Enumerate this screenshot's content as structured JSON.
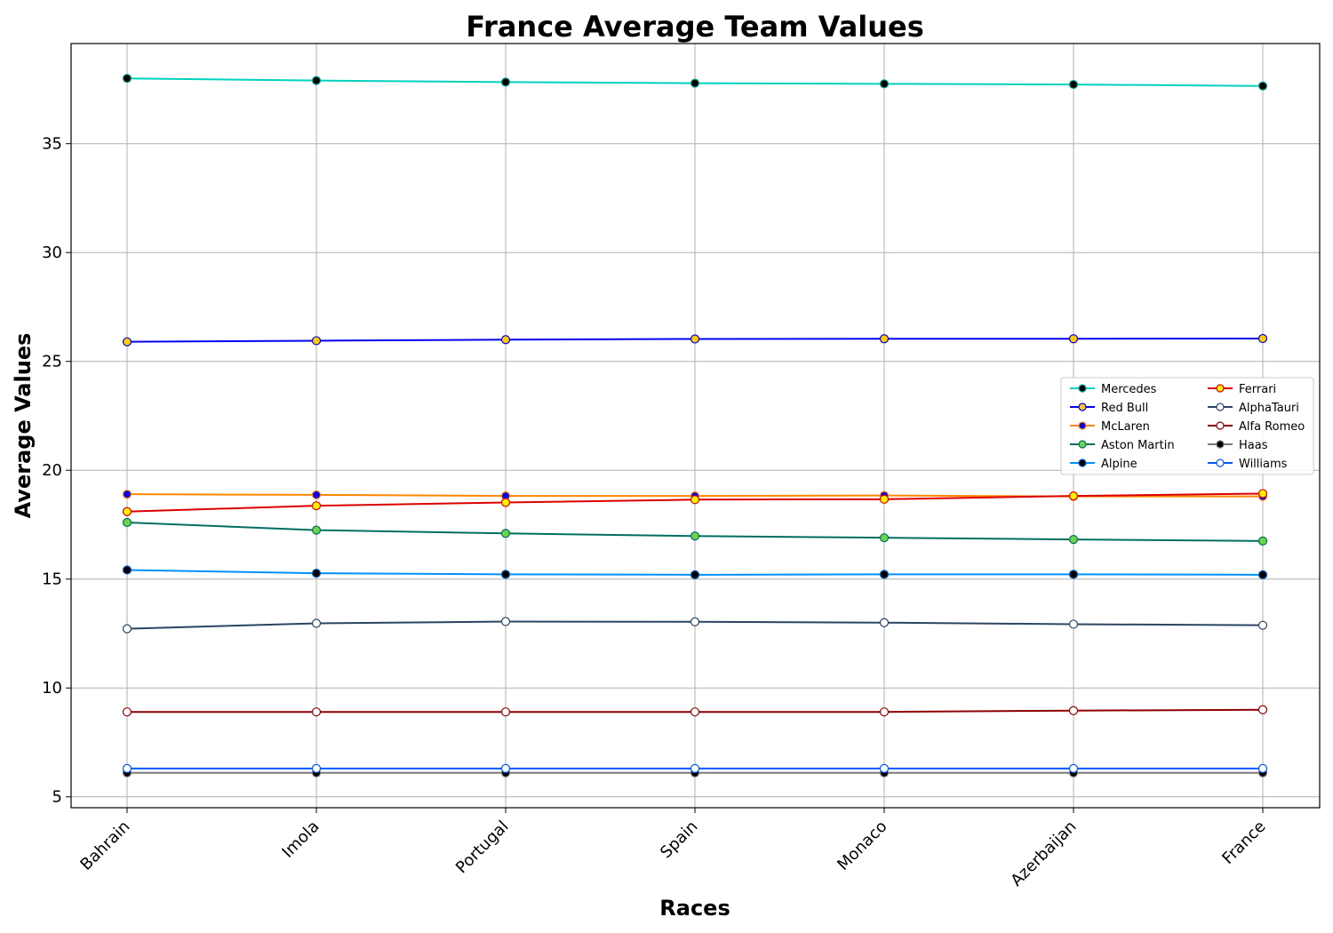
{
  "chart_data": {
    "type": "line",
    "title": "France Average Team Values",
    "xlabel": "Races",
    "ylabel": "Average Values",
    "categories": [
      "Bahrain",
      "Imola",
      "Portugal",
      "Spain",
      "Monaco",
      "Azerbaijan",
      "France"
    ],
    "ylim": [
      4.5,
      39.6
    ],
    "yticks": [
      5,
      10,
      15,
      20,
      25,
      30,
      35
    ],
    "grid": true,
    "legend_position": "center-right",
    "legend_columns": 2,
    "series": [
      {
        "name": "Mercedes",
        "color": "#00d2be",
        "marker_face": "#000000",
        "marker_edge": "#00a896",
        "values": [
          38.0,
          37.9,
          37.83,
          37.78,
          37.75,
          37.72,
          37.65
        ]
      },
      {
        "name": "Red Bull",
        "color": "#0600ef",
        "marker_face": "#ffcc00",
        "marker_edge": "#0600ef",
        "values": [
          25.9,
          25.95,
          26.0,
          26.03,
          26.04,
          26.04,
          26.05
        ]
      },
      {
        "name": "McLaren",
        "color": "#ff8700",
        "marker_face": "#0600ef",
        "marker_edge": "#ff8700",
        "values": [
          18.9,
          18.87,
          18.82,
          18.82,
          18.84,
          18.8,
          18.8
        ]
      },
      {
        "name": "Aston Martin",
        "color": "#006f62",
        "marker_face": "#6cd44a",
        "marker_edge": "#006f62",
        "values": [
          17.6,
          17.25,
          17.1,
          16.98,
          16.9,
          16.82,
          16.75
        ]
      },
      {
        "name": "Alpine",
        "color": "#0090ff",
        "marker_face": "#000000",
        "marker_edge": "#0060c0",
        "values": [
          15.42,
          15.27,
          15.22,
          15.2,
          15.22,
          15.22,
          15.2
        ]
      },
      {
        "name": "Ferrari",
        "color": "#dc0000",
        "marker_face": "#fff200",
        "marker_edge": "#dc0000",
        "values": [
          18.1,
          18.37,
          18.52,
          18.65,
          18.67,
          18.82,
          18.93
        ]
      },
      {
        "name": "AlphaTauri",
        "color": "#2b4562",
        "marker_face": "#ffffff",
        "marker_edge": "#2b4562",
        "values": [
          12.72,
          12.97,
          13.05,
          13.04,
          13.0,
          12.93,
          12.88
        ]
      },
      {
        "name": "Alfa Romeo",
        "color": "#900000",
        "marker_face": "#ffffff",
        "marker_edge": "#900000",
        "values": [
          8.9,
          8.9,
          8.9,
          8.9,
          8.9,
          8.96,
          9.0
        ]
      },
      {
        "name": "Haas",
        "color": "#787878",
        "marker_face": "#000000",
        "marker_edge": "#787878",
        "values": [
          6.1,
          6.1,
          6.1,
          6.1,
          6.1,
          6.1,
          6.1
        ]
      },
      {
        "name": "Williams",
        "color": "#005aff",
        "marker_face": "#ffffff",
        "marker_edge": "#005aff",
        "values": [
          6.3,
          6.3,
          6.3,
          6.3,
          6.3,
          6.3,
          6.3
        ]
      }
    ]
  }
}
